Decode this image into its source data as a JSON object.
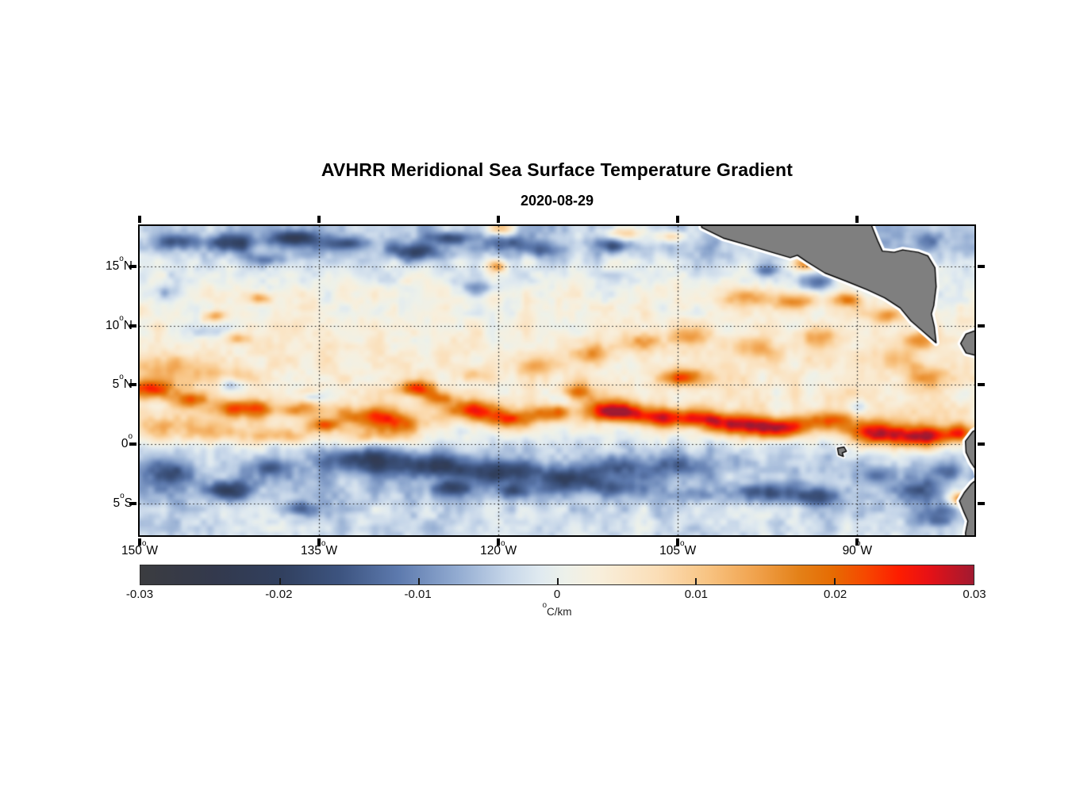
{
  "title": "AVHRR Meridional Sea Surface Temperature Gradient",
  "subtitle": "2020-08-29",
  "deg_char": "o",
  "axes": {
    "xlim": [
      -150,
      -80.2
    ],
    "ylim": [
      -7.7,
      18.42
    ],
    "xticks": [
      {
        "v": -150,
        "base": "150",
        "suffix": "W"
      },
      {
        "v": -135,
        "base": "135",
        "suffix": "W"
      },
      {
        "v": -120,
        "base": "120",
        "suffix": "W"
      },
      {
        "v": -105,
        "base": "105",
        "suffix": "W"
      },
      {
        "v": -90,
        "base": "90",
        "suffix": "W"
      }
    ],
    "yticks": [
      {
        "v": 15,
        "base": "15",
        "suffix": "N"
      },
      {
        "v": 10,
        "base": "10",
        "suffix": "N"
      },
      {
        "v": 5,
        "base": "5",
        "suffix": "N"
      },
      {
        "v": 0,
        "base": "0",
        "suffix": ""
      },
      {
        "v": -5,
        "base": "5",
        "suffix": "S"
      }
    ],
    "grid": {
      "style": "dotted",
      "color": "#1a1a1a"
    }
  },
  "colorbar": {
    "min": -0.03,
    "max": 0.03,
    "ticks": [
      {
        "v": -0.03,
        "label": "-0.03"
      },
      {
        "v": -0.02,
        "label": "-0.02"
      },
      {
        "v": -0.01,
        "label": "-0.01"
      },
      {
        "v": 0,
        "label": "0"
      },
      {
        "v": 0.01,
        "label": "0.01"
      },
      {
        "v": 0.02,
        "label": "0.02"
      },
      {
        "v": 0.03,
        "label": "0.03"
      }
    ],
    "unit_sup": "o",
    "unit_text": "C/km"
  },
  "chart_data": {
    "type": "heatmap",
    "variable": "meridional sea surface temperature gradient",
    "units": "degC/km",
    "value_range": [
      -0.03,
      0.03
    ],
    "colormap": [
      [
        0.0,
        "#3b3c40"
      ],
      [
        0.09,
        "#33394d"
      ],
      [
        0.17,
        "#31405f"
      ],
      [
        0.24,
        "#3d5480"
      ],
      [
        0.31,
        "#5d7aae"
      ],
      [
        0.38,
        "#92abd1"
      ],
      [
        0.44,
        "#c6d6e9"
      ],
      [
        0.48,
        "#e0eaf0"
      ],
      [
        0.51,
        "#edf1ea"
      ],
      [
        0.55,
        "#f8efdc"
      ],
      [
        0.62,
        "#fbdeb7"
      ],
      [
        0.68,
        "#f8c483"
      ],
      [
        0.74,
        "#f0a14b"
      ],
      [
        0.79,
        "#e48118"
      ],
      [
        0.83,
        "#e66c03"
      ],
      [
        0.87,
        "#f64800"
      ],
      [
        0.91,
        "#fe1d00"
      ],
      [
        0.945,
        "#e81115"
      ],
      [
        1.0,
        "#a11a31"
      ]
    ],
    "background_lat_profile": [
      [
        18.42,
        -0.005
      ],
      [
        16.5,
        -0.005
      ],
      [
        15.2,
        -0.002
      ],
      [
        13,
        0.001
      ],
      [
        10,
        0.003
      ],
      [
        7,
        0.004
      ],
      [
        4.5,
        0.004
      ],
      [
        2,
        0.004
      ],
      [
        0.8,
        0.001
      ],
      [
        -0.3,
        -0.003
      ],
      [
        -2,
        -0.005
      ],
      [
        -4,
        -0.005
      ],
      [
        -6,
        -0.003
      ],
      [
        -7.7,
        -0.003
      ]
    ],
    "features_format": [
      "lon",
      "lat",
      "sigma_lon_deg",
      "sigma_lat_deg",
      "amplitude_degC_per_km"
    ],
    "features": [
      [
        -149.2,
        4.6,
        2.2,
        0.8,
        0.021
      ],
      [
        -145.6,
        3.8,
        1.8,
        0.7,
        0.016
      ],
      [
        -141.2,
        3.0,
        2.4,
        0.8,
        0.02
      ],
      [
        -136.3,
        2.9,
        2.2,
        0.7,
        0.014
      ],
      [
        -130.6,
        2.4,
        2.6,
        0.8,
        0.017
      ],
      [
        -126.9,
        4.7,
        1.7,
        0.7,
        0.02
      ],
      [
        -125.0,
        3.9,
        1.3,
        0.6,
        0.014
      ],
      [
        -128.2,
        1.6,
        2.2,
        0.8,
        0.013
      ],
      [
        -122.4,
        2.9,
        2.4,
        0.9,
        0.02
      ],
      [
        -119.3,
        2.1,
        2.0,
        0.8,
        0.019
      ],
      [
        -115.8,
        2.6,
        2.0,
        0.8,
        0.016
      ],
      [
        -113.3,
        4.4,
        1.4,
        0.8,
        0.013
      ],
      [
        -110.4,
        2.8,
        2.2,
        0.9,
        0.026
      ],
      [
        -106.8,
        2.3,
        2.4,
        0.8,
        0.02
      ],
      [
        -103.4,
        2.1,
        2.4,
        0.8,
        0.018
      ],
      [
        -104.6,
        5.6,
        1.8,
        0.7,
        0.018
      ],
      [
        -100.0,
        1.6,
        2.4,
        0.9,
        0.022
      ],
      [
        -96.4,
        1.3,
        2.4,
        0.9,
        0.025
      ],
      [
        -92.6,
        1.9,
        2.2,
        0.8,
        0.017
      ],
      [
        -88.0,
        0.9,
        2.6,
        1.1,
        0.028
      ],
      [
        -84.4,
        0.6,
        2.0,
        1.0,
        0.026
      ],
      [
        -81.4,
        0.9,
        1.4,
        0.8,
        0.02
      ],
      [
        -148.3,
        1.3,
        2.6,
        1.0,
        0.012
      ],
      [
        -143.2,
        0.9,
        2.6,
        0.9,
        0.01
      ],
      [
        -138.0,
        0.7,
        2.6,
        0.8,
        0.012
      ],
      [
        -134.6,
        1.6,
        1.4,
        0.6,
        0.018
      ],
      [
        -130.2,
        0.6,
        2.6,
        0.8,
        0.01
      ],
      [
        -148.6,
        6.6,
        2.2,
        1.0,
        0.009
      ],
      [
        -144.0,
        5.8,
        3.0,
        1.0,
        0.007
      ],
      [
        -141.8,
        8.9,
        1.0,
        0.5,
        0.011
      ],
      [
        -143.7,
        10.8,
        0.9,
        0.5,
        0.013
      ],
      [
        -139.9,
        12.3,
        0.9,
        0.5,
        0.015
      ],
      [
        -119.8,
        18.2,
        1.1,
        0.5,
        0.014
      ],
      [
        -120.1,
        15.0,
        0.9,
        0.5,
        0.015
      ],
      [
        -109.5,
        17.8,
        1.8,
        0.6,
        0.015
      ],
      [
        -105.6,
        17.5,
        1.1,
        0.5,
        0.012
      ],
      [
        -94.3,
        15.3,
        1.1,
        0.6,
        0.021
      ],
      [
        -99.2,
        12.4,
        1.9,
        0.8,
        0.013
      ],
      [
        -95.2,
        12.0,
        1.8,
        0.7,
        0.015
      ],
      [
        -90.8,
        12.2,
        1.3,
        0.6,
        0.018
      ],
      [
        -87.6,
        10.9,
        1.5,
        0.7,
        0.013
      ],
      [
        -85.0,
        8.8,
        1.6,
        0.8,
        0.012
      ],
      [
        -84.2,
        5.7,
        1.8,
        1.0,
        0.012
      ],
      [
        -87.0,
        7.2,
        1.8,
        1.0,
        0.009
      ],
      [
        -117.0,
        6.6,
        1.8,
        0.8,
        0.009
      ],
      [
        -112.2,
        7.6,
        1.8,
        0.8,
        0.011
      ],
      [
        -108.0,
        8.6,
        1.8,
        0.8,
        0.011
      ],
      [
        -104.0,
        9.2,
        1.8,
        0.8,
        0.01
      ],
      [
        -122.2,
        5.9,
        1.4,
        0.6,
        0.009
      ],
      [
        -98.0,
        8.0,
        2.0,
        0.9,
        0.008
      ],
      [
        -93.0,
        9.0,
        1.8,
        0.8,
        0.01
      ],
      [
        -81.3,
        -4.6,
        0.9,
        0.6,
        0.024
      ],
      [
        -147.6,
        -2.6,
        1.9,
        1.0,
        -0.014
      ],
      [
        -142.6,
        -3.9,
        2.0,
        0.8,
        -0.015
      ],
      [
        -139.0,
        -1.9,
        1.7,
        0.7,
        -0.01
      ],
      [
        -136.5,
        -5.5,
        1.4,
        0.6,
        -0.011
      ],
      [
        -131.0,
        -1.3,
        3.4,
        1.0,
        -0.016
      ],
      [
        -125.2,
        -1.9,
        3.4,
        1.0,
        -0.016
      ],
      [
        -124.0,
        -3.7,
        1.7,
        0.6,
        -0.012
      ],
      [
        -119.2,
        -2.3,
        3.0,
        1.0,
        -0.014
      ],
      [
        -118.5,
        -4.0,
        1.3,
        0.6,
        -0.011
      ],
      [
        -114.0,
        -3.0,
        2.8,
        1.0,
        -0.014
      ],
      [
        -110.0,
        -3.7,
        2.4,
        0.8,
        -0.01
      ],
      [
        -109.8,
        -1.9,
        2.4,
        0.9,
        -0.011
      ],
      [
        -105.0,
        -1.7,
        2.4,
        0.9,
        -0.01
      ],
      [
        -103.6,
        -4.3,
        1.6,
        0.6,
        -0.008
      ],
      [
        -97.6,
        -4.1,
        2.0,
        0.8,
        -0.011
      ],
      [
        -93.4,
        -4.4,
        1.8,
        0.7,
        -0.012
      ],
      [
        -88.6,
        -2.6,
        1.8,
        0.8,
        -0.008
      ],
      [
        -85.0,
        -4.0,
        2.0,
        1.0,
        -0.01
      ],
      [
        -83.4,
        -6.2,
        1.6,
        0.9,
        -0.01
      ],
      [
        -82.4,
        -2.4,
        1.1,
        0.7,
        -0.01
      ],
      [
        -146.8,
        17.1,
        1.5,
        0.6,
        -0.013
      ],
      [
        -142.5,
        17.0,
        2.1,
        0.7,
        -0.014
      ],
      [
        -137.2,
        17.4,
        1.9,
        0.6,
        -0.016
      ],
      [
        -132.8,
        16.9,
        1.9,
        0.6,
        -0.013
      ],
      [
        -127.1,
        16.2,
        2.1,
        0.7,
        -0.014
      ],
      [
        -124.0,
        17.4,
        1.7,
        0.5,
        -0.012
      ],
      [
        -119.0,
        17.0,
        1.6,
        0.6,
        -0.011
      ],
      [
        -116.3,
        16.4,
        1.6,
        0.6,
        -0.011
      ],
      [
        -110.2,
        16.8,
        1.4,
        0.6,
        -0.012
      ],
      [
        -121.8,
        13.2,
        1.6,
        0.6,
        -0.008
      ],
      [
        -147.8,
        12.8,
        1.1,
        0.6,
        -0.008
      ],
      [
        -144.2,
        9.6,
        1.7,
        0.7,
        -0.008
      ],
      [
        -139.2,
        15.6,
        2.0,
        0.5,
        -0.007
      ],
      [
        -93.5,
        13.7,
        1.2,
        0.7,
        -0.013
      ],
      [
        -97.6,
        14.6,
        1.0,
        0.5,
        -0.009
      ],
      [
        -84.0,
        17.2,
        1.4,
        0.7,
        -0.006
      ],
      [
        -142.1,
        5.0,
        1.1,
        0.5,
        -0.01
      ],
      [
        -135.6,
        4.0,
        0.9,
        0.4,
        -0.008
      ],
      [
        -114.6,
        3.7,
        0.9,
        0.5,
        -0.008
      ],
      [
        -90.2,
        3.2,
        1.0,
        0.5,
        -0.007
      ]
    ],
    "noise": {
      "octaves": [
        [
          1.4,
          0.003
        ],
        [
          0.55,
          0.0018
        ]
      ],
      "seed": 7
    },
    "land": {
      "fill": "#7f7f7f",
      "outline": "#000000",
      "halo": "#ffffff",
      "polygons": [
        {
          "name": "central-america",
          "pts": [
            [
              -103.2,
              19.5
            ],
            [
              -103.0,
              18.3
            ],
            [
              -101.2,
              17.4
            ],
            [
              -98.8,
              16.7
            ],
            [
              -96.8,
              16.1
            ],
            [
              -95.6,
              15.75
            ],
            [
              -95.0,
              15.95
            ],
            [
              -94.2,
              15.4
            ],
            [
              -92.7,
              14.45
            ],
            [
              -90.9,
              13.75
            ],
            [
              -89.2,
              13.05
            ],
            [
              -87.7,
              12.35
            ],
            [
              -86.4,
              11.5
            ],
            [
              -85.5,
              10.4
            ],
            [
              -84.7,
              9.7
            ],
            [
              -83.4,
              8.55
            ],
            [
              -83.55,
              9.9
            ],
            [
              -83.8,
              11.0
            ],
            [
              -83.6,
              11.7
            ],
            [
              -83.4,
              13.3
            ],
            [
              -83.5,
              14.9
            ],
            [
              -84.1,
              15.9
            ],
            [
              -84.9,
              16.2
            ],
            [
              -86.2,
              16.4
            ],
            [
              -86.9,
              16.2
            ],
            [
              -87.9,
              16.3
            ],
            [
              -88.3,
              17.2
            ],
            [
              -88.8,
              18.45
            ],
            [
              -88.8,
              19.5
            ]
          ]
        },
        {
          "name": "panama",
          "pts": [
            [
              -79.3,
              9.9
            ],
            [
              -80.9,
              9.3
            ],
            [
              -81.35,
              8.5
            ],
            [
              -80.9,
              7.7
            ],
            [
              -79.3,
              7.3
            ]
          ]
        },
        {
          "name": "south-america",
          "pts": [
            [
              -79.3,
              1.7
            ],
            [
              -80.35,
              1.05
            ],
            [
              -80.95,
              0.25
            ],
            [
              -80.9,
              -0.7
            ],
            [
              -80.5,
              -1.55
            ],
            [
              -80.05,
              -2.2
            ],
            [
              -79.9,
              -2.9
            ],
            [
              -80.45,
              -3.35
            ],
            [
              -81.05,
              -4.1
            ],
            [
              -81.45,
              -4.8
            ],
            [
              -81.1,
              -5.7
            ],
            [
              -80.75,
              -6.5
            ],
            [
              -80.95,
              -7.5
            ],
            [
              -80.85,
              -9.0
            ],
            [
              -79.3,
              -9.0
            ]
          ]
        },
        {
          "name": "galapagos",
          "pts": [
            [
              -91.65,
              -0.35
            ],
            [
              -91.1,
              -0.25
            ],
            [
              -90.9,
              -0.6
            ],
            [
              -91.25,
              -0.75
            ],
            [
              -91.15,
              -1.05
            ],
            [
              -91.55,
              -0.9
            ]
          ]
        }
      ]
    }
  }
}
